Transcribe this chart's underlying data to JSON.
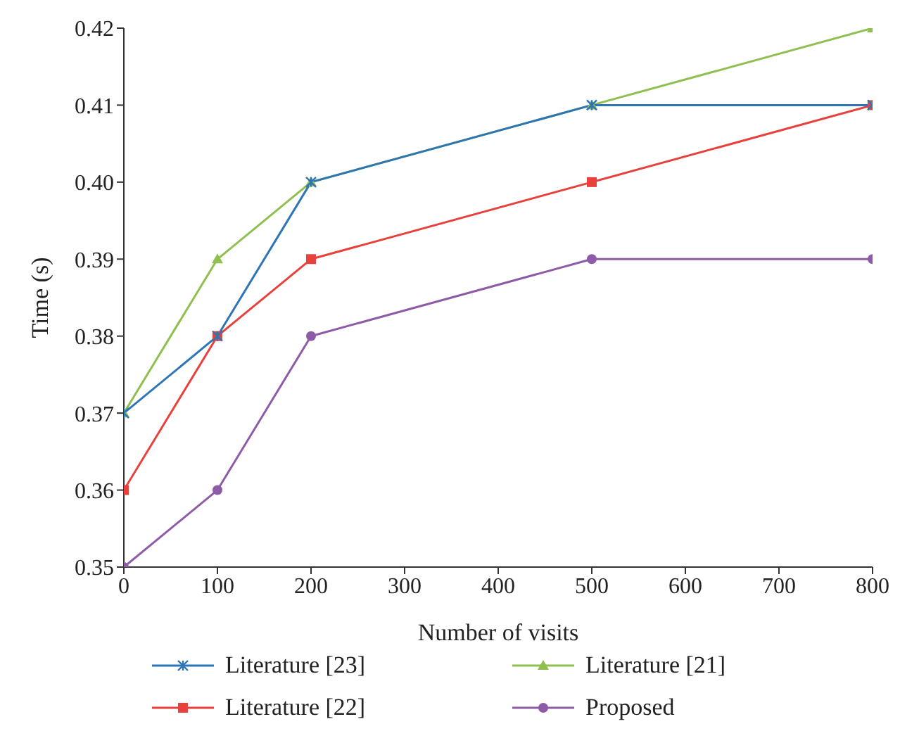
{
  "chart_data": {
    "type": "line",
    "xlabel": "Number of visits",
    "ylabel": "Time (s)",
    "x": [
      0,
      100,
      200,
      500,
      800
    ],
    "series": [
      {
        "name": "Literature [23]",
        "color": "#2e75b6",
        "marker": "cross",
        "values": [
          0.37,
          0.38,
          0.4,
          0.41,
          0.41
        ]
      },
      {
        "name": "Literature [21]",
        "color": "#8fbf4f",
        "marker": "triangle",
        "values": [
          0.37,
          0.39,
          0.4,
          0.41,
          0.42
        ]
      },
      {
        "name": "Literature [22]",
        "color": "#e8413c",
        "marker": "square",
        "values": [
          0.36,
          0.38,
          0.39,
          0.4,
          0.41
        ]
      },
      {
        "name": "Proposed",
        "color": "#8e5ba6",
        "marker": "circle",
        "values": [
          0.35,
          0.36,
          0.38,
          0.39,
          0.39
        ]
      }
    ],
    "xlim": [
      0,
      800
    ],
    "xticks": [
      0,
      100,
      200,
      300,
      400,
      500,
      600,
      700,
      800
    ],
    "ylim": [
      0.35,
      0.42
    ],
    "yticks": [
      0.35,
      0.36,
      0.37,
      0.38,
      0.39,
      {
        "value": 0.4,
        "label": "0.40"
      },
      0.41,
      0.42
    ],
    "grid": false,
    "legend": "bottom",
    "line_style": "solid"
  }
}
